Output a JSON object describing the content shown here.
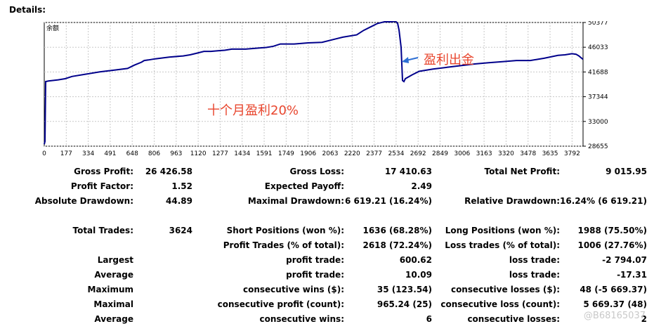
{
  "header": {
    "title": "Details:"
  },
  "chart_data": {
    "type": "line",
    "title": "余额",
    "x_ticks": [
      "0",
      "177",
      "334",
      "491",
      "648",
      "806",
      "963",
      "1120",
      "1277",
      "1434",
      "1591",
      "1749",
      "1906",
      "2063",
      "2220",
      "2377",
      "2534",
      "2692",
      "2849",
      "3006",
      "3163",
      "3320",
      "3478",
      "3635",
      "3792"
    ],
    "y_ticks": [
      "50377",
      "46033",
      "41688",
      "37344",
      "33000",
      "28655"
    ],
    "ylim": [
      28655,
      50377
    ],
    "xlim": [
      0,
      3880
    ],
    "line_color": "#00008b",
    "annotations": [
      {
        "text": "盈利出金",
        "color": "#e8462e"
      },
      {
        "text": "十个月盈利20%",
        "color": "#e8462e"
      }
    ],
    "arrow_color": "#2e6fd4",
    "series": [
      {
        "x": [
          0,
          5,
          10,
          30,
          100,
          150,
          200,
          300,
          400,
          500,
          600,
          650,
          700,
          720,
          750,
          800,
          900,
          1000,
          1050,
          1100,
          1150,
          1200,
          1250,
          1300,
          1350,
          1450,
          1550,
          1600,
          1650,
          1700,
          1800,
          1900,
          2000,
          2100,
          2150,
          2250,
          2300,
          2350,
          2400,
          2450,
          2500,
          2530,
          2545,
          2555,
          2570,
          2580,
          2590,
          2600,
          2650,
          2700,
          2800,
          2900,
          3000,
          3100,
          3200,
          3300,
          3400,
          3500,
          3550,
          3600,
          3700,
          3750,
          3800,
          3830,
          3850,
          3880
        ],
        "y": [
          29000,
          29500,
          40000,
          40100,
          40300,
          40500,
          40900,
          41300,
          41700,
          42000,
          42300,
          42900,
          43400,
          43700,
          43800,
          44000,
          44300,
          44500,
          44700,
          45000,
          45300,
          45300,
          45400,
          45500,
          45700,
          45700,
          45900,
          46000,
          46200,
          46600,
          46600,
          46800,
          46900,
          47500,
          47800,
          48200,
          49000,
          49600,
          50200,
          50500,
          50500,
          50600,
          50200,
          49000,
          46000,
          40200,
          40000,
          40500,
          41200,
          41800,
          42200,
          42500,
          42800,
          43100,
          43300,
          43500,
          43700,
          43700,
          43900,
          44100,
          44600,
          44700,
          44900,
          44800,
          44500,
          43900
        ]
      }
    ]
  },
  "stats": {
    "row1": {
      "gross_profit_label": "Gross Profit:",
      "gross_profit": "26 426.58",
      "gross_loss_label": "Gross Loss:",
      "gross_loss": "17 410.63",
      "total_net_profit_label": "Total Net Profit:",
      "total_net_profit": "9 015.95"
    },
    "row2": {
      "profit_factor_label": "Profit Factor:",
      "profit_factor": "1.52",
      "expected_payoff_label": "Expected Payoff:",
      "expected_payoff": "2.49"
    },
    "row3": {
      "absolute_drawdown_label": "Absolute Drawdown:",
      "absolute_drawdown": "44.89",
      "maximal_drawdown_label": "Maximal Drawdown:",
      "maximal_drawdown": "6 619.21 (16.24%)",
      "relative_drawdown_label": "Relative Drawdown:",
      "relative_drawdown": "16.24% (6 619.21)"
    },
    "row4": {
      "total_trades_label": "Total Trades:",
      "total_trades": "3624",
      "short_positions_label": "Short Positions (won %):",
      "short_positions": "1636 (68.28%)",
      "long_positions_label": "Long Positions (won %):",
      "long_positions": "1988 (75.50%)"
    },
    "row5": {
      "profit_trades_label": "Profit Trades (% of total):",
      "profit_trades": "2618 (72.24%)",
      "loss_trades_label": "Loss trades (% of total):",
      "loss_trades": "1006 (27.76%)"
    },
    "row6": {
      "c1": "Largest",
      "c2": "profit trade:",
      "v2": "600.62",
      "c3": "loss trade:",
      "v3": "-2 794.07"
    },
    "row7": {
      "c1": "Average",
      "c2": "profit trade:",
      "v2": "10.09",
      "c3": "loss trade:",
      "v3": "-17.31"
    },
    "row8": {
      "c1": "Maximum",
      "c2": "consecutive wins ($):",
      "v2": "35 (123.54)",
      "c3": "consecutive losses ($):",
      "v3": "48 (-5 669.37)"
    },
    "row9": {
      "c1": "Maximal",
      "c2": "consecutive profit (count):",
      "v2": "965.24 (25)",
      "c3": "consecutive loss (count):",
      "v3": "5 669.37 (48)"
    },
    "row10": {
      "c1": "Average",
      "c2": "consecutive wins:",
      "v2": "6",
      "c3": "consecutive losses:",
      "v3": "2"
    }
  },
  "watermark": "@B68165037"
}
